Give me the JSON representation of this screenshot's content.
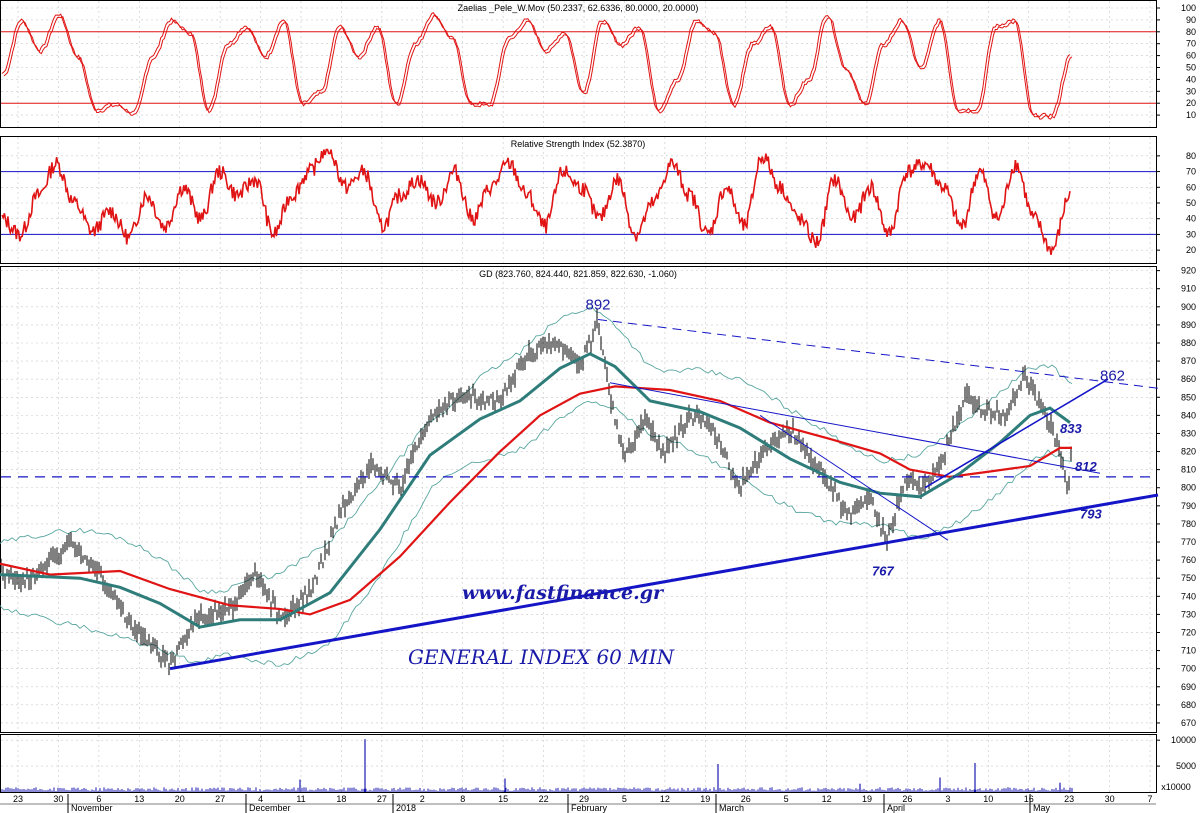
{
  "colors": {
    "price_bars": "#000000",
    "ma_fast": "#2e7d7a",
    "ma_slow": "#e01414",
    "bollinger": "#5aa6a0",
    "trend": "#1515c8",
    "oscillator": "#e01414",
    "grid": "#c8c8c8"
  },
  "chart_data": [
    {
      "type": "line",
      "title": "Zaelias _Pele_W.Mov (50.2337, 62.6336, 80.0000, 20.0000)",
      "ylim": [
        0,
        100
      ],
      "yticks": [
        10,
        20,
        30,
        40,
        50,
        60,
        70,
        80,
        90,
        100
      ],
      "reference_lines": [
        80,
        20
      ],
      "oscillator_swings": [
        45,
        90,
        65,
        95,
        60,
        15,
        20,
        12,
        60,
        90,
        80,
        15,
        70,
        85,
        60,
        90,
        20,
        30,
        85,
        60,
        85,
        20,
        70,
        95,
        75,
        20,
        20,
        75,
        90,
        65,
        80,
        30,
        90,
        70,
        85,
        15,
        40,
        90,
        80,
        20,
        70,
        85,
        20,
        40,
        95,
        50,
        20,
        70,
        90,
        50,
        90,
        15,
        15,
        85,
        90,
        10,
        10,
        60
      ]
    },
    {
      "type": "line",
      "title": "Relative Strength Index (52.3870)",
      "ylim": [
        15,
        85
      ],
      "yticks": [
        20,
        30,
        40,
        50,
        60,
        70,
        80
      ],
      "reference_lines": [
        70,
        30
      ],
      "oscillator_swings": [
        40,
        30,
        55,
        75,
        50,
        32,
        45,
        28,
        55,
        35,
        60,
        40,
        70,
        55,
        65,
        30,
        55,
        70,
        85,
        60,
        70,
        35,
        55,
        65,
        50,
        70,
        40,
        60,
        75,
        55,
        35,
        70,
        60,
        40,
        65,
        30,
        50,
        75,
        55,
        30,
        60,
        35,
        80,
        60,
        40,
        25,
        65,
        40,
        60,
        30,
        70,
        75,
        60,
        35,
        70,
        40,
        75,
        40,
        20,
        55
      ]
    },
    {
      "type": "line",
      "title": "GD (823.760, 824.440, 821.859, 822.630, -1.060)",
      "ylim": [
        665,
        922
      ],
      "yticks": [
        670,
        680,
        690,
        700,
        710,
        720,
        730,
        740,
        750,
        760,
        770,
        780,
        790,
        800,
        810,
        820,
        830,
        840,
        850,
        860,
        870,
        880,
        890,
        900,
        910,
        920
      ],
      "price_path": [
        [
          0,
          753
        ],
        [
          30,
          748
        ],
        [
          70,
          770
        ],
        [
          100,
          752
        ],
        [
          135,
          720
        ],
        [
          170,
          703
        ],
        [
          195,
          728
        ],
        [
          230,
          733
        ],
        [
          255,
          752
        ],
        [
          280,
          728
        ],
        [
          310,
          742
        ],
        [
          340,
          785
        ],
        [
          370,
          812
        ],
        [
          400,
          800
        ],
        [
          430,
          840
        ],
        [
          460,
          850
        ],
        [
          500,
          848
        ],
        [
          525,
          872
        ],
        [
          555,
          880
        ],
        [
          580,
          868
        ],
        [
          598,
          892
        ],
        [
          610,
          848
        ],
        [
          625,
          818
        ],
        [
          645,
          838
        ],
        [
          665,
          820
        ],
        [
          690,
          840
        ],
        [
          710,
          835
        ],
        [
          740,
          800
        ],
        [
          760,
          818
        ],
        [
          790,
          832
        ],
        [
          820,
          810
        ],
        [
          848,
          785
        ],
        [
          870,
          795
        ],
        [
          887,
          770
        ],
        [
          905,
          805
        ],
        [
          925,
          800
        ],
        [
          945,
          820
        ],
        [
          965,
          850
        ],
        [
          985,
          843
        ],
        [
          1005,
          840
        ],
        [
          1025,
          862
        ],
        [
          1045,
          842
        ],
        [
          1060,
          820
        ],
        [
          1068,
          800
        ],
        [
          1072,
          822
        ]
      ],
      "ma_fast_path": [
        [
          0,
          752
        ],
        [
          80,
          750
        ],
        [
          120,
          745
        ],
        [
          160,
          736
        ],
        [
          200,
          723
        ],
        [
          240,
          727
        ],
        [
          280,
          727
        ],
        [
          330,
          742
        ],
        [
          380,
          777
        ],
        [
          430,
          818
        ],
        [
          480,
          838
        ],
        [
          520,
          848
        ],
        [
          560,
          866
        ],
        [
          590,
          874
        ],
        [
          615,
          867
        ],
        [
          650,
          848
        ],
        [
          700,
          842
        ],
        [
          740,
          833
        ],
        [
          790,
          816
        ],
        [
          840,
          803
        ],
        [
          880,
          797
        ],
        [
          920,
          795
        ],
        [
          960,
          808
        ],
        [
          1000,
          825
        ],
        [
          1030,
          840
        ],
        [
          1050,
          844
        ],
        [
          1070,
          836
        ]
      ],
      "ma_slow_path": [
        [
          0,
          758
        ],
        [
          50,
          752
        ],
        [
          120,
          754
        ],
        [
          170,
          744
        ],
        [
          230,
          735
        ],
        [
          280,
          733
        ],
        [
          310,
          730
        ],
        [
          350,
          738
        ],
        [
          400,
          762
        ],
        [
          450,
          792
        ],
        [
          500,
          820
        ],
        [
          540,
          840
        ],
        [
          580,
          852
        ],
        [
          615,
          856
        ],
        [
          670,
          854
        ],
        [
          720,
          848
        ],
        [
          770,
          836
        ],
        [
          830,
          827
        ],
        [
          880,
          819
        ],
        [
          910,
          810
        ],
        [
          950,
          806
        ],
        [
          990,
          809
        ],
        [
          1030,
          812
        ],
        [
          1060,
          822
        ],
        [
          1072,
          822
        ]
      ],
      "annotations": [
        {
          "text": "892",
          "x": 598,
          "y": 892
        },
        {
          "text": "862",
          "x": 1100,
          "y": 862
        },
        {
          "text": "833",
          "x": 1060,
          "y": 833
        },
        {
          "text": "812",
          "x": 1075,
          "y": 812
        },
        {
          "text": "793",
          "x": 1080,
          "y": 793
        },
        {
          "text": "767",
          "x": 872,
          "y": 767
        }
      ],
      "support_line": {
        "from": [
          170,
          700
        ],
        "to": [
          1158,
          796
        ]
      },
      "resistance_dashed": {
        "from": [
          598,
          893
        ],
        "to": [
          1158,
          855
        ]
      },
      "horizontal_dashed": 806,
      "watermark": "www.fastfinance.gr",
      "caption": "GENERAL INDEX 60 MIN"
    },
    {
      "type": "bar",
      "title": "",
      "ylim": [
        0,
        11000
      ],
      "yticks": [
        5000,
        10000
      ],
      "unit_label": "x10000",
      "spikes": [
        [
          365,
          10200
        ],
        [
          975,
          5600
        ],
        [
          718,
          5400
        ],
        [
          300,
          2400
        ],
        [
          505,
          2600
        ],
        [
          940,
          2800
        ],
        [
          1060,
          1800
        ],
        [
          860,
          1600
        ]
      ]
    }
  ],
  "x_axis": {
    "day_ticks": [
      "23",
      "30",
      "6",
      "13",
      "20",
      "27",
      "4",
      "11",
      "18",
      "27",
      "2",
      "8",
      "15",
      "22",
      "29",
      "5",
      "12",
      "19",
      "26",
      "5",
      "12",
      "19",
      "26",
      "3",
      "10",
      "16",
      "23",
      "30",
      "7"
    ],
    "months": [
      "November",
      "December",
      "2018",
      "February",
      "March",
      "April",
      "May"
    ]
  }
}
